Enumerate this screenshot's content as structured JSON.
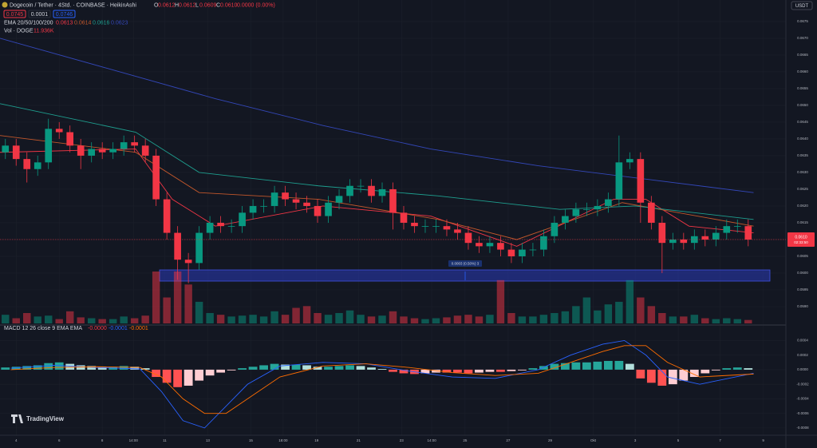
{
  "chart_data": [
    {
      "type": "candlestick",
      "title": "Dogecoin / Tether · 4Std. · COINBASE · HeikinAshi",
      "ohlc_text": [
        "O",
        "0.0612",
        "H",
        "0.0612",
        "L",
        "0.0609",
        "C",
        "0.0610",
        "0.0000 (0.00%)"
      ],
      "top_boxes": [
        "0.0745",
        "0.0001",
        "0.0746"
      ],
      "ema_label": "EMA 20/50/100/200",
      "volume_label": "Vol · DOGE",
      "volume_value_text": "11.936K",
      "currency": "USDT",
      "measure_label": "0.0003 (0.50%) 3",
      "countdown": "02:33:50",
      "last_price": {
        "value": 0.061,
        "label": "0.0610"
      },
      "up_color": "#089981",
      "down_color": "#f23645",
      "grid": true,
      "open": [
        0.0636,
        0.0638,
        0.0634,
        0.0631,
        0.0633,
        0.0643,
        0.0642,
        0.0638,
        0.0635,
        0.0637,
        0.0636,
        0.0637,
        0.0639,
        0.0638,
        0.0635,
        0.0622,
        0.0612,
        0.0604,
        0.0603,
        0.0612,
        0.0615,
        0.0614,
        0.0614,
        0.0618,
        0.062,
        0.062,
        0.0624,
        0.0622,
        0.0621,
        0.062,
        0.0617,
        0.0621,
        0.0623,
        0.0626,
        0.0626,
        0.0623,
        0.0625,
        0.0618,
        0.0615,
        0.0614,
        0.0614,
        0.0614,
        0.0613,
        0.0612,
        0.0609,
        0.0608,
        0.0609,
        0.0607,
        0.0605,
        0.0607,
        0.0607,
        0.0611,
        0.0615,
        0.0617,
        0.0619,
        0.0619,
        0.062,
        0.0622,
        0.0633,
        0.0634,
        0.0621,
        0.0615,
        0.0609,
        0.061,
        0.0609,
        0.0611,
        0.061,
        0.0612,
        0.0614,
        0.0614
      ],
      "high": [
        0.064,
        0.064,
        0.0636,
        0.0635,
        0.0646,
        0.0645,
        0.0644,
        0.064,
        0.0639,
        0.0639,
        0.0639,
        0.0641,
        0.0641,
        0.064,
        0.0637,
        0.0624,
        0.0614,
        0.0606,
        0.0614,
        0.0617,
        0.0617,
        0.0616,
        0.062,
        0.0622,
        0.0622,
        0.0626,
        0.0626,
        0.0624,
        0.0623,
        0.0622,
        0.0623,
        0.0625,
        0.0628,
        0.0628,
        0.0628,
        0.0627,
        0.0627,
        0.062,
        0.0617,
        0.0616,
        0.0616,
        0.0616,
        0.0615,
        0.0614,
        0.0611,
        0.0611,
        0.0611,
        0.0609,
        0.0609,
        0.0609,
        0.0613,
        0.0617,
        0.0619,
        0.0621,
        0.0621,
        0.0622,
        0.0624,
        0.0641,
        0.0636,
        0.0636,
        0.0623,
        0.0617,
        0.0612,
        0.0612,
        0.0613,
        0.0613,
        0.0614,
        0.0616,
        0.0616,
        0.0616
      ],
      "low": [
        0.0634,
        0.0632,
        0.0627,
        0.0629,
        0.0631,
        0.064,
        0.0636,
        0.0631,
        0.0633,
        0.0634,
        0.0634,
        0.0635,
        0.0636,
        0.0633,
        0.062,
        0.061,
        0.0598,
        0.0597,
        0.0601,
        0.061,
        0.0612,
        0.0612,
        0.0612,
        0.0616,
        0.0618,
        0.0618,
        0.062,
        0.0619,
        0.0618,
        0.0615,
        0.0615,
        0.0619,
        0.0621,
        0.0624,
        0.0621,
        0.0621,
        0.0613,
        0.0613,
        0.0612,
        0.0612,
        0.0612,
        0.0611,
        0.061,
        0.0607,
        0.0606,
        0.0606,
        0.0605,
        0.0603,
        0.0603,
        0.0605,
        0.0605,
        0.0609,
        0.0613,
        0.0615,
        0.0617,
        0.0617,
        0.0618,
        0.062,
        0.0631,
        0.0615,
        0.0613,
        0.06,
        0.0607,
        0.0607,
        0.0607,
        0.0608,
        0.0608,
        0.061,
        0.0612,
        0.0608
      ],
      "close": [
        0.0638,
        0.0634,
        0.0631,
        0.0633,
        0.0643,
        0.0642,
        0.0638,
        0.0635,
        0.0637,
        0.0636,
        0.0637,
        0.0639,
        0.0638,
        0.0635,
        0.0622,
        0.0612,
        0.0604,
        0.0603,
        0.0612,
        0.0615,
        0.0614,
        0.0614,
        0.0618,
        0.062,
        0.062,
        0.0624,
        0.0622,
        0.0621,
        0.062,
        0.0617,
        0.0621,
        0.0623,
        0.0626,
        0.0626,
        0.0623,
        0.0625,
        0.0618,
        0.0615,
        0.0614,
        0.0614,
        0.0614,
        0.0613,
        0.0612,
        0.0609,
        0.0608,
        0.0609,
        0.0607,
        0.0605,
        0.0607,
        0.0607,
        0.0611,
        0.0615,
        0.0617,
        0.0619,
        0.0619,
        0.062,
        0.0622,
        0.0633,
        0.0634,
        0.0621,
        0.0615,
        0.0609,
        0.061,
        0.0609,
        0.0611,
        0.061,
        0.0612,
        0.0614,
        0.0614,
        0.061
      ],
      "volume": [
        10000,
        6000,
        12000,
        8000,
        9000,
        5000,
        14000,
        7000,
        6000,
        5000,
        5000,
        8000,
        6000,
        9000,
        60000,
        30000,
        60000,
        45000,
        25000,
        12000,
        10000,
        8000,
        9000,
        10000,
        8000,
        14000,
        10000,
        18000,
        20000,
        12000,
        10000,
        12000,
        15000,
        10000,
        8000,
        9000,
        14000,
        8000,
        6000,
        5000,
        6000,
        7000,
        9000,
        10000,
        8000,
        10000,
        50000,
        12000,
        8000,
        8000,
        10000,
        12000,
        14000,
        20000,
        30000,
        15000,
        22000,
        25000,
        50000,
        30000,
        20000,
        12000,
        8000,
        8000,
        10000,
        6000,
        5000,
        6000,
        5000,
        4000
      ],
      "series": [
        {
          "color": "#f23645",
          "legend_value": 0.0613,
          "x": [
            0,
            12.6,
            16,
            20,
            30,
            40,
            48,
            57,
            60,
            64,
            70
          ],
          "values": [
            0.0636,
            0.0637,
            0.0622,
            0.0614,
            0.062,
            0.0617,
            0.0608,
            0.0622,
            0.0622,
            0.0614,
            0.0612
          ]
        },
        {
          "color": "#c2572b",
          "legend_value": 0.0614,
          "x": [
            0,
            12.6,
            18.5,
            29.6,
            40.7,
            48,
            57.8,
            70
          ],
          "values": [
            0.0641,
            0.0636,
            0.0624,
            0.0622,
            0.0616,
            0.061,
            0.0621,
            0.0614
          ]
        },
        {
          "color": "#1e9e8e",
          "legend_value": 0.0616,
          "x": [
            0,
            12.6,
            18.5,
            29.6,
            40.7,
            52,
            59,
            70
          ],
          "values": [
            0.06505,
            0.0642,
            0.063,
            0.0626,
            0.0623,
            0.0619,
            0.062,
            0.0616
          ]
        },
        {
          "color": "#3347b8",
          "legend_value": 0.0623,
          "x": [
            0,
            10,
            20,
            30,
            40,
            50,
            60,
            70
          ],
          "values": [
            0.067,
            0.0661,
            0.0652,
            0.0644,
            0.0637,
            0.0632,
            0.0628,
            0.0624
          ]
        }
      ],
      "xlim": [
        0,
        73
      ],
      "xticks": [
        {
          "value": 1.5,
          "label": "4"
        },
        {
          "value": 5.5,
          "label": "6"
        },
        {
          "value": 9.5,
          "label": "8"
        },
        {
          "value": 12.4,
          "label": "14:00"
        },
        {
          "value": 15.3,
          "label": "11"
        },
        {
          "value": 19.3,
          "label": "13"
        },
        {
          "value": 23.3,
          "label": "15"
        },
        {
          "value": 26.3,
          "label": "18:00"
        },
        {
          "value": 29.4,
          "label": "19"
        },
        {
          "value": 33.3,
          "label": "21"
        },
        {
          "value": 37.3,
          "label": "23"
        },
        {
          "value": 40.1,
          "label": "14:00"
        },
        {
          "value": 43.2,
          "label": "25"
        },
        {
          "value": 47.2,
          "label": "27"
        },
        {
          "value": 51.1,
          "label": "29"
        },
        {
          "value": 55.1,
          "label": "Okt"
        },
        {
          "value": 59,
          "label": "3"
        },
        {
          "value": 63,
          "label": "5"
        },
        {
          "value": 66.9,
          "label": "7"
        },
        {
          "value": 70.9,
          "label": "9"
        }
      ],
      "ylim": [
        0.0585,
        0.06814
      ],
      "yticks": [
        0.0675,
        {
          "value": 0.067,
          "label": "0.0670"
        },
        0.0665,
        {
          "value": 0.066,
          "label": "0.0660"
        },
        0.0655,
        {
          "value": 0.065,
          "label": "0.0650"
        },
        0.0645,
        {
          "value": 0.064,
          "label": "0.0640"
        },
        0.0635,
        {
          "value": 0.063,
          "label": "0.0630"
        },
        0.0625,
        {
          "value": 0.062,
          "label": "0.0620"
        },
        0.0615,
        {
          "value": 0.061,
          "label": "0.0610"
        },
        0.0605,
        {
          "value": 0.06,
          "label": "0.0600"
        },
        0.0595,
        {
          "value": 0.059,
          "label": "0.0590"
        }
      ]
    },
    {
      "type": "macd",
      "title": "MACD 12 26 close 9 EMA EMA",
      "value_texts": [
        "-0.0000",
        "-0.0001",
        "-0.0001"
      ],
      "histogram": [
        3e-05,
        4e-05,
        5e-05,
        6e-05,
        9e-05,
        0.0001,
        8e-05,
        6e-05,
        5e-05,
        4e-05,
        4e-05,
        5e-05,
        4e-05,
        2e-05,
        -0.0001,
        -0.00018,
        -0.00024,
        -0.00022,
        -0.00015,
        -8e-05,
        -4e-05,
        -1e-05,
        2e-05,
        4e-05,
        6e-05,
        8e-05,
        7e-05,
        7e-05,
        6e-05,
        4e-05,
        4e-05,
        5e-05,
        6e-05,
        5e-05,
        3e-05,
        1e-05,
        -3e-05,
        -5e-05,
        -6e-05,
        -5e-05,
        -4e-05,
        -4e-05,
        -4e-05,
        -5e-05,
        -4e-05,
        -3e-05,
        -3e-05,
        -2e-05,
        -1e-05,
        2e-05,
        5e-05,
        8e-05,
        9e-05,
        0.0001,
        0.0001,
        0.00011,
        0.00012,
        0.00012,
        8e-05,
        -0.00012,
        -0.00018,
        -0.00022,
        -0.0002,
        -0.00015,
        -0.0001,
        -5e-05,
        -1e-05,
        2e-05,
        3e-05,
        2e-05
      ],
      "series": [
        {
          "color": "#2962ff",
          "x": [
            1,
            5,
            9,
            13,
            15,
            17,
            19,
            21,
            23,
            26,
            30,
            34,
            38,
            42,
            46,
            50,
            53,
            56,
            58,
            60,
            62,
            65,
            70
          ],
          "values": [
            2e-05,
            6e-05,
            3e-05,
            1e-05,
            -0.0003,
            -0.0007,
            -0.0008,
            -0.0005,
            -0.0002,
            5e-05,
            0.0001,
            8e-05,
            -2e-05,
            -0.0001,
            -0.00012,
            0,
            0.0002,
            0.00035,
            0.0004,
            0.0002,
            -0.0001,
            -0.0002,
            -5e-05
          ]
        },
        {
          "color": "#ff6d00",
          "x": [
            1,
            5,
            9,
            13,
            15,
            17,
            19,
            21,
            23,
            26,
            30,
            34,
            38,
            42,
            46,
            50,
            53,
            56,
            58,
            60,
            62,
            65,
            70
          ],
          "values": [
            0,
            3e-05,
            4e-05,
            3e-05,
            -0.0001,
            -0.0004,
            -0.0006,
            -0.0006,
            -0.0004,
            -0.0001,
            5e-05,
            8e-05,
            3e-05,
            -4e-05,
            -8e-05,
            -5e-05,
            0.0001,
            0.00025,
            0.00033,
            0.00033,
            0.0001,
            -0.0001,
            -6e-05
          ]
        }
      ],
      "ylim": [
        -0.0009,
        0.00058
      ],
      "yticks": [
        0.0004,
        0.0002,
        {
          "value": 0,
          "label": "0.0000"
        },
        -0.0002,
        -0.0004,
        -0.0006,
        -0.0008
      ]
    }
  ]
}
